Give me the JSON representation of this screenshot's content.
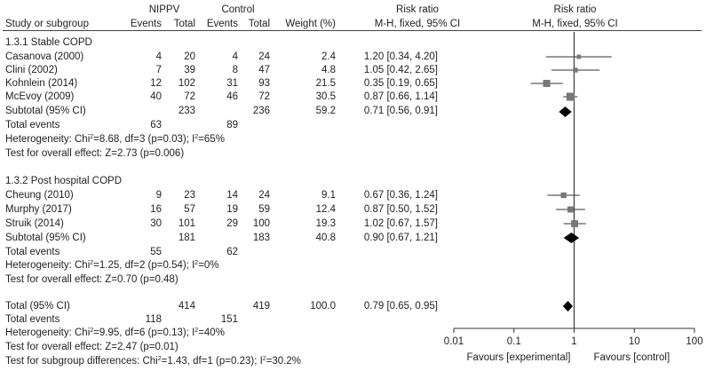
{
  "header": {
    "col_study": "Study or subgroup",
    "group_experimental": "NIPPV",
    "group_control": "Control",
    "col_events": "Events",
    "col_total": "Total",
    "col_weight": "Weight (%)",
    "col_rr": "Risk ratio",
    "col_rr_method": "M-H, fixed, 95% CI",
    "plot_title": "Risk ratio",
    "plot_method": "M-H, fixed, 95% CI"
  },
  "subgroups": [
    {
      "title": "1.3.1 Stable COPD",
      "studies": [
        {
          "name": "Casanova (2000)",
          "e_events": "4",
          "e_total": "20",
          "c_events": "4",
          "c_total": "24",
          "weight": "2.4",
          "ci": "1.20 [0.34, 4.20]"
        },
        {
          "name": "Clini (2002)",
          "e_events": "7",
          "e_total": "39",
          "c_events": "8",
          "c_total": "47",
          "weight": "4.8",
          "ci": "1.05 [0.42, 2.65]"
        },
        {
          "name": "Kohnlein (2014)",
          "e_events": "12",
          "e_total": "102",
          "c_events": "31",
          "c_total": "93",
          "weight": "21.5",
          "ci": "0.35 [0.19, 0.65]"
        },
        {
          "name": "McEvoy (2009)",
          "e_events": "40",
          "e_total": "72",
          "c_events": "46",
          "c_total": "72",
          "weight": "30.5",
          "ci": "0.87 [0.66, 1.14]"
        }
      ],
      "subtotal": {
        "label": "Subtotal (95% CI)",
        "e_total": "233",
        "c_total": "236",
        "weight": "59.2",
        "ci": "0.71 [0.56, 0.91]"
      },
      "total_events": {
        "label": "Total events",
        "e": "63",
        "c": "89"
      },
      "heterogeneity": {
        "prefix": "Heterogeneity: Chi",
        "sup1": "2",
        "mid": "=8.68, df=3 (p=0.03); I",
        "sup2": "2",
        "suffix": "=65%"
      },
      "overall_effect": "Test for overall effect: Z=2.73 (p=0.006)"
    },
    {
      "title": "1.3.2 Post hospital COPD",
      "studies": [
        {
          "name": "Cheung (2010)",
          "e_events": "9",
          "e_total": "23",
          "c_events": "14",
          "c_total": "24",
          "weight": "9.1",
          "ci": "0.67 [0.36, 1.24]"
        },
        {
          "name": "Murphy (2017)",
          "e_events": "16",
          "e_total": "57",
          "c_events": "19",
          "c_total": "59",
          "weight": "12.4",
          "ci": "0.87 [0.50, 1.52]"
        },
        {
          "name": "Struik (2014)",
          "e_events": "30",
          "e_total": "101",
          "c_events": "29",
          "c_total": "100",
          "weight": "19.3",
          "ci": "1.02 [0.67, 1.57]"
        }
      ],
      "subtotal": {
        "label": "Subtotal (95% CI)",
        "e_total": "181",
        "c_total": "183",
        "weight": "40.8",
        "ci": "0.90 [0.67, 1.21]"
      },
      "total_events": {
        "label": "Total events",
        "e": "55",
        "c": "62"
      },
      "heterogeneity": {
        "prefix": "Heterogeneity: Chi",
        "sup1": "2",
        "mid": "=1.25, df=2 (p=0.54); I",
        "sup2": "2",
        "suffix": "=0%"
      },
      "overall_effect": "Test for overall effect: Z=0.70 (p=0.48)"
    }
  ],
  "overall": {
    "total": {
      "label": "Total (95% CI)",
      "e_total": "414",
      "c_total": "419",
      "weight": "100.0",
      "ci": "0.79 [0.65, 0.95]"
    },
    "total_events": {
      "label": "Total events",
      "e": "118",
      "c": "151"
    },
    "heterogeneity": {
      "prefix": "Heterogeneity: Chi",
      "sup1": "2",
      "mid": "=9.95, df=6 (p=0.13); I",
      "sup2": "2",
      "suffix": "=40%"
    },
    "overall_effect": "Test for overall effect: Z=2.47 (p=0.01)",
    "subgroup_diff": {
      "prefix": "Test for subgroup differences: Chi",
      "sup1": "2",
      "mid": "=1.43, df=1 (p=0.23); I",
      "sup2": "2",
      "suffix": "=30.2%"
    }
  },
  "axis": {
    "ticks": [
      "0.01",
      "0.1",
      "1",
      "10",
      "100"
    ],
    "favours_left": "Favours [experimental]",
    "favours_right": "Favours [control]"
  },
  "chart_data": {
    "type": "forest",
    "title": "Risk ratio",
    "xlabel": "M-H, fixed, 95% CI",
    "x_scale": "log",
    "xlim": [
      0.01,
      100
    ],
    "reference_line": 1,
    "studies": [
      {
        "name": "Casanova (2000)",
        "rr": 1.2,
        "lo": 0.34,
        "hi": 4.2,
        "weight": 2.4
      },
      {
        "name": "Clini (2002)",
        "rr": 1.05,
        "lo": 0.42,
        "hi": 2.65,
        "weight": 4.8
      },
      {
        "name": "Kohnlein (2014)",
        "rr": 0.35,
        "lo": 0.19,
        "hi": 0.65,
        "weight": 21.5
      },
      {
        "name": "McEvoy (2009)",
        "rr": 0.87,
        "lo": 0.66,
        "hi": 1.14,
        "weight": 30.5
      },
      {
        "name": "Cheung (2010)",
        "rr": 0.67,
        "lo": 0.36,
        "hi": 1.24,
        "weight": 9.1
      },
      {
        "name": "Murphy (2017)",
        "rr": 0.87,
        "lo": 0.5,
        "hi": 1.52,
        "weight": 12.4
      },
      {
        "name": "Struik (2014)",
        "rr": 1.02,
        "lo": 0.67,
        "hi": 1.57,
        "weight": 19.3
      }
    ],
    "pooled": [
      {
        "name": "Subtotal (95% CI) 1.3.1 Stable COPD",
        "rr": 0.71,
        "lo": 0.56,
        "hi": 0.91
      },
      {
        "name": "Subtotal (95% CI) 1.3.2 Post hospital COPD",
        "rr": 0.9,
        "lo": 0.67,
        "hi": 1.21
      },
      {
        "name": "Total (95% CI)",
        "rr": 0.79,
        "lo": 0.65,
        "hi": 0.95
      }
    ],
    "colors": {
      "marker": "#777777",
      "diamond": "#000000",
      "line": "#333333"
    }
  }
}
